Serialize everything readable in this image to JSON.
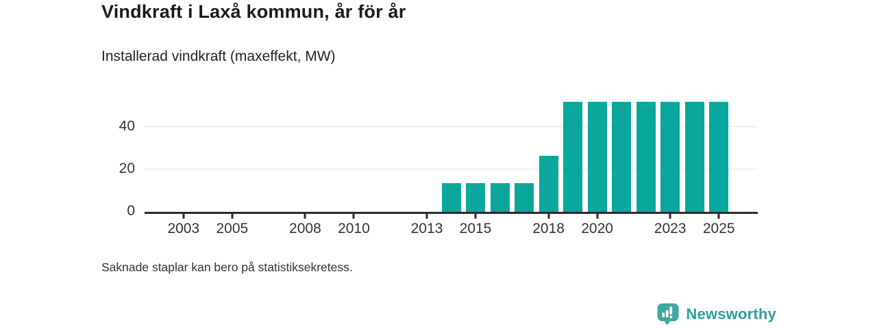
{
  "header": {
    "title": "Vindkraft i Laxå kommun, år för år",
    "subtitle": "Installerad vindkraft (maxeffekt, MW)"
  },
  "chart_data": {
    "type": "bar",
    "title": "Vindkraft i Laxå kommun, år för år",
    "subtitle": "Installerad vindkraft (maxeffekt, MW)",
    "ylabel": "Installerad vindkraft (maxeffekt, MW)",
    "xlabel": "",
    "unit": "MW",
    "years": [
      2014,
      2015,
      2016,
      2017,
      2018,
      2019,
      2020,
      2021,
      2022,
      2023,
      2024,
      2025
    ],
    "values": [
      13.6,
      13.6,
      13.6,
      13.6,
      26.6,
      51.8,
      51.8,
      51.8,
      51.8,
      51.8,
      51.8,
      51.8
    ],
    "xticks": [
      2003,
      2005,
      2008,
      2010,
      2013,
      2015,
      2018,
      2020,
      2023,
      2025
    ],
    "yticks": [
      0,
      20,
      40
    ],
    "gridlines": [
      20,
      40
    ],
    "x_domain": [
      2001.4,
      2026.6
    ],
    "ylim": [
      0,
      54.8
    ],
    "grid": "horizontal-only",
    "legend_position": "none",
    "bar_color": "#0aa79c"
  },
  "footnote": "Saknade staplar kan bero på statistiksekretess.",
  "brand": {
    "name": "Newsworthy",
    "icon": "newsworthy-speech-bubble-bar-chart-icon",
    "icon_color": "#41a5a0",
    "icon_glyph_color": "#ffffff",
    "text_color": "#2e9e9a"
  },
  "colors": {
    "background": "#ffffff",
    "axis": "#2b2b2b",
    "gridline": "#e4e4e4",
    "tick_text": "#333333",
    "title_text": "#1a1a1a"
  }
}
